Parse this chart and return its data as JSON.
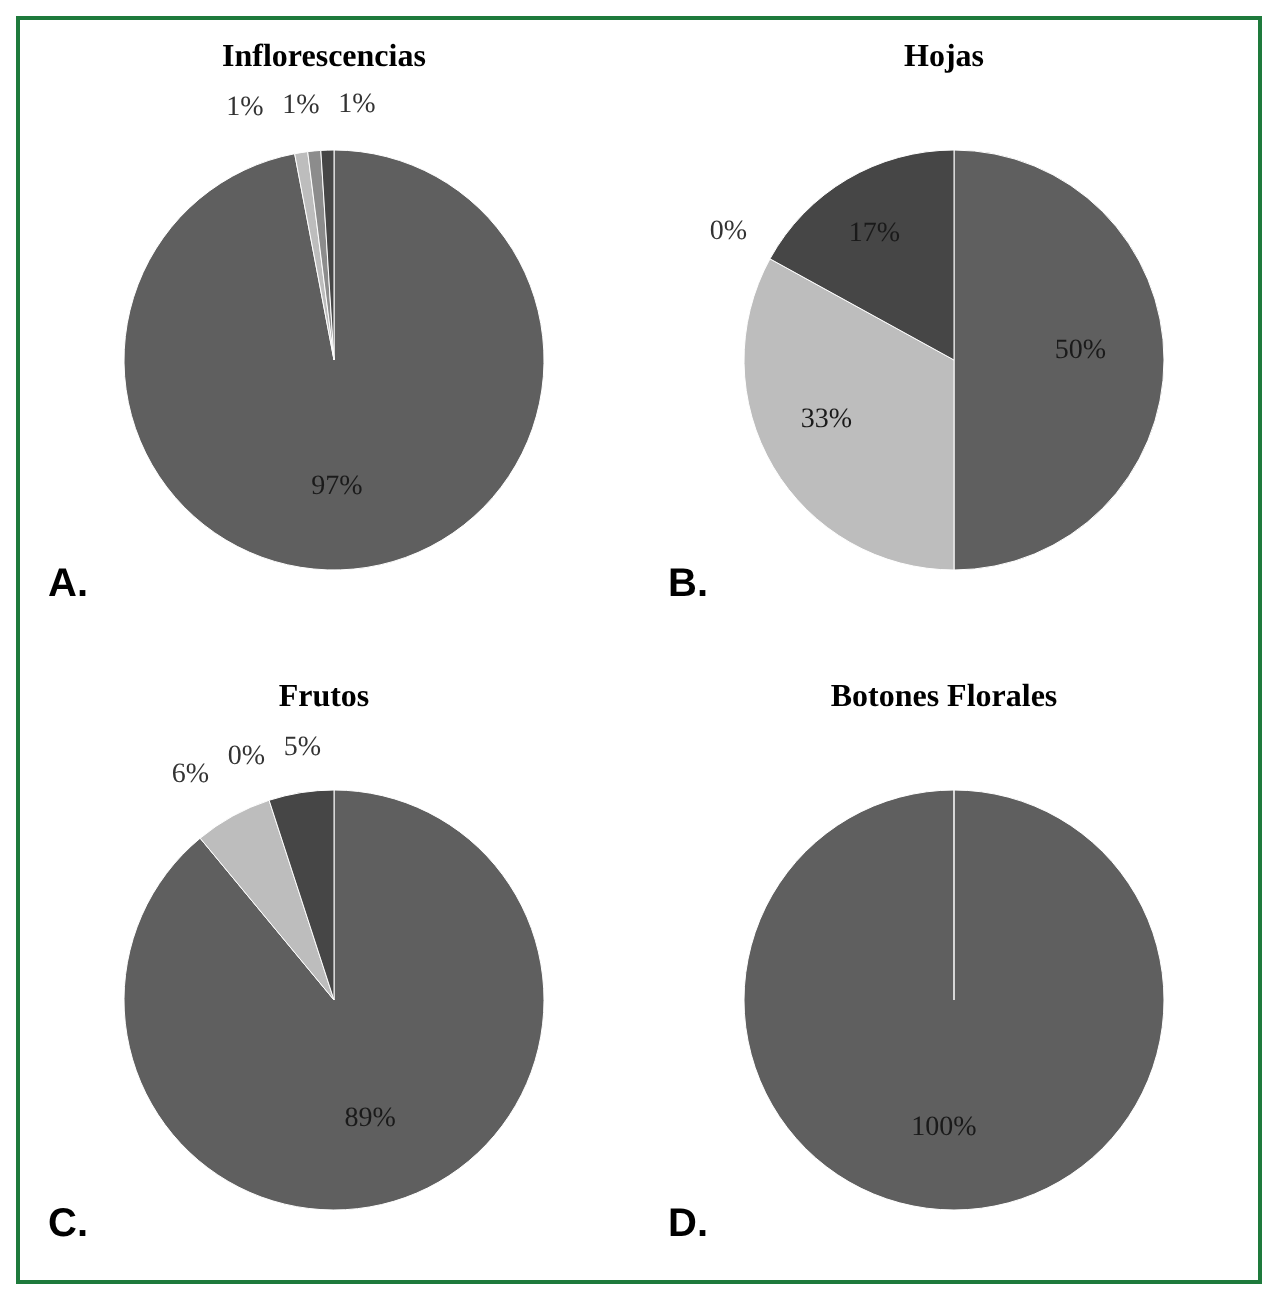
{
  "chart_data": [
    {
      "type": "pie",
      "title": "Inflorescencias",
      "categories": [
        null,
        null,
        null,
        null
      ],
      "values": [
        97,
        1,
        1,
        1
      ],
      "value_labels": [
        "97%",
        "1%",
        "1%",
        "1%"
      ],
      "colors": [
        "#5f5f5f",
        "#bdbdbd",
        "#8c8c8c",
        "#464646"
      ],
      "annotations": [
        "A."
      ]
    },
    {
      "type": "pie",
      "title": "Hojas",
      "categories": [
        null,
        null,
        null,
        null
      ],
      "values": [
        50,
        33,
        0,
        17
      ],
      "value_labels": [
        "50%",
        "33%",
        "0%",
        "17%"
      ],
      "colors": [
        "#5f5f5f",
        "#bdbdbd",
        "#8c8c8c",
        "#464646"
      ],
      "annotations": [
        "B."
      ]
    },
    {
      "type": "pie",
      "title": "Frutos",
      "categories": [
        null,
        null,
        null,
        null
      ],
      "values": [
        89,
        6,
        0,
        5
      ],
      "value_labels": [
        "89%",
        "6%",
        "0%",
        "5%"
      ],
      "colors": [
        "#5f5f5f",
        "#bdbdbd",
        "#8c8c8c",
        "#464646"
      ],
      "annotations": [
        "C."
      ]
    },
    {
      "type": "pie",
      "title": "Botones Florales",
      "categories": [
        null,
        null,
        null,
        null
      ],
      "values": [
        100,
        0,
        0,
        0
      ],
      "value_labels": [
        "100%",
        null,
        null,
        null
      ],
      "colors": [
        "#5f5f5f",
        "#bdbdbd",
        "#8c8c8c",
        "#464646"
      ],
      "annotations": [
        "D."
      ]
    }
  ]
}
